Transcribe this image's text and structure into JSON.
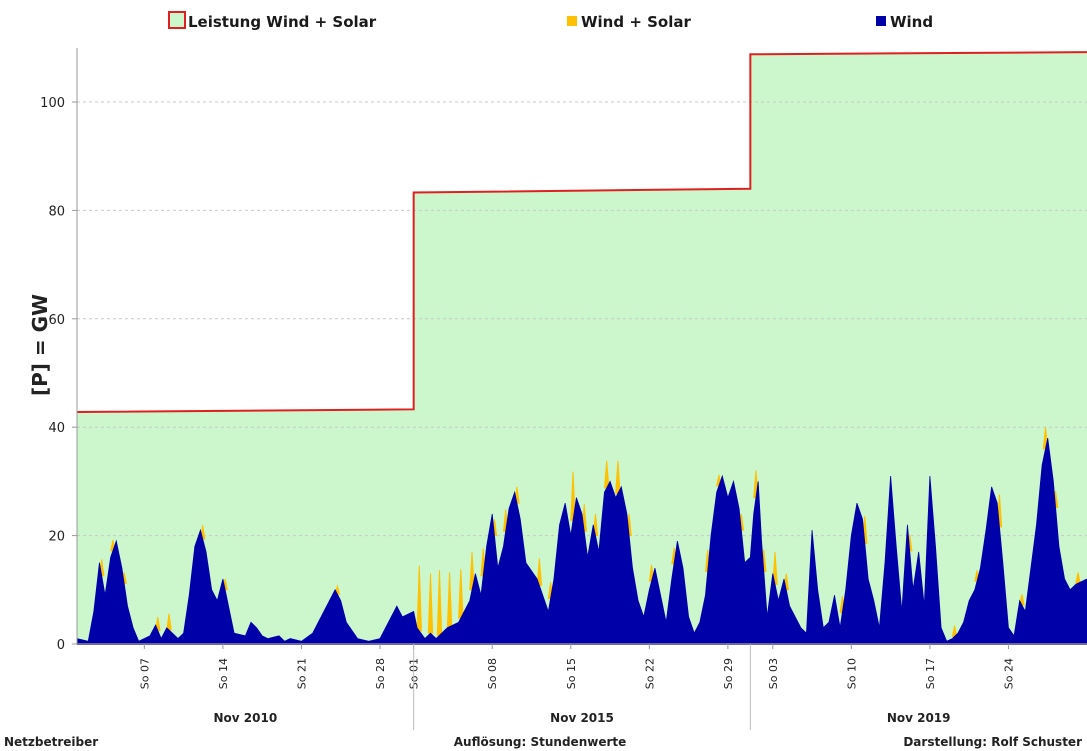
{
  "chart_data": {
    "type": "area",
    "ylabel": "[P]  =  GW",
    "ylim": [
      0,
      110
    ],
    "yticks": [
      0,
      20,
      40,
      60,
      80,
      100
    ],
    "grid": true,
    "legend_position": "top",
    "legend": [
      {
        "name": "Leistung Wind + Solar",
        "swatch": "outline",
        "fill": "#ccf7cc",
        "stroke": "#e02020"
      },
      {
        "name": "Wind + Solar",
        "swatch": "solid",
        "color": "#ffc000"
      },
      {
        "name": "Wind",
        "swatch": "solid",
        "color": "#0000a8"
      }
    ],
    "colors": {
      "capacity_fill": "#ccf7cc",
      "capacity_line": "#e02020",
      "wind_solar": "#ffc000",
      "wind": "#0000a8",
      "grid": "#c8c8c8"
    },
    "x_days_total": 90,
    "periods": [
      {
        "label": "Nov 2010",
        "start_day": 0,
        "end_day": 30
      },
      {
        "label": "Nov 2015",
        "start_day": 30,
        "end_day": 60
      },
      {
        "label": "Nov 2019",
        "start_day": 60,
        "end_day": 90
      }
    ],
    "xticks": [
      {
        "label": "So 07",
        "day": 6
      },
      {
        "label": "So 14",
        "day": 13
      },
      {
        "label": "So 21",
        "day": 20
      },
      {
        "label": "So 28",
        "day": 27
      },
      {
        "label": "So 01",
        "day": 30
      },
      {
        "label": "So 08",
        "day": 37
      },
      {
        "label": "So 15",
        "day": 44
      },
      {
        "label": "So 22",
        "day": 51
      },
      {
        "label": "So 29",
        "day": 58
      },
      {
        "label": "So 03",
        "day": 62
      },
      {
        "label": "So 10",
        "day": 69
      },
      {
        "label": "So 17",
        "day": 76
      },
      {
        "label": "So 24",
        "day": 83
      }
    ],
    "capacity": [
      {
        "day": 0,
        "value": 42.8
      },
      {
        "day": 30,
        "value": 43.3
      },
      {
        "day": 30,
        "value": 83.3
      },
      {
        "day": 60,
        "value": 84.0
      },
      {
        "day": 60,
        "value": 108.8
      },
      {
        "day": 90,
        "value": 109.2
      }
    ],
    "wind": [
      {
        "day": 0,
        "value": 1
      },
      {
        "day": 1,
        "value": 0.5
      },
      {
        "day": 1.5,
        "value": 6
      },
      {
        "day": 2,
        "value": 15
      },
      {
        "day": 2.5,
        "value": 9
      },
      {
        "day": 3,
        "value": 16
      },
      {
        "day": 3.5,
        "value": 19
      },
      {
        "day": 4,
        "value": 14
      },
      {
        "day": 4.5,
        "value": 7
      },
      {
        "day": 5,
        "value": 3
      },
      {
        "day": 5.5,
        "value": 0.5
      },
      {
        "day": 6.5,
        "value": 1.5
      },
      {
        "day": 7,
        "value": 3.5
      },
      {
        "day": 7.5,
        "value": 1
      },
      {
        "day": 8,
        "value": 3
      },
      {
        "day": 8.5,
        "value": 2
      },
      {
        "day": 9,
        "value": 1
      },
      {
        "day": 9.5,
        "value": 2
      },
      {
        "day": 10,
        "value": 9
      },
      {
        "day": 10.5,
        "value": 18
      },
      {
        "day": 11,
        "value": 21
      },
      {
        "day": 11.5,
        "value": 17
      },
      {
        "day": 12,
        "value": 10
      },
      {
        "day": 12.5,
        "value": 8
      },
      {
        "day": 13,
        "value": 12
      },
      {
        "day": 13.5,
        "value": 7
      },
      {
        "day": 14,
        "value": 2
      },
      {
        "day": 15,
        "value": 1.5
      },
      {
        "day": 15.5,
        "value": 4
      },
      {
        "day": 16,
        "value": 3
      },
      {
        "day": 16.5,
        "value": 1.5
      },
      {
        "day": 17,
        "value": 1
      },
      {
        "day": 18,
        "value": 1.5
      },
      {
        "day": 18.5,
        "value": 0.5
      },
      {
        "day": 19,
        "value": 1
      },
      {
        "day": 20,
        "value": 0.5
      },
      {
        "day": 21,
        "value": 2
      },
      {
        "day": 22,
        "value": 6
      },
      {
        "day": 23,
        "value": 10
      },
      {
        "day": 23.5,
        "value": 8
      },
      {
        "day": 24,
        "value": 4
      },
      {
        "day": 25,
        "value": 1
      },
      {
        "day": 26,
        "value": 0.5
      },
      {
        "day": 27,
        "value": 1
      },
      {
        "day": 28,
        "value": 5
      },
      {
        "day": 28.5,
        "value": 7
      },
      {
        "day": 29,
        "value": 5
      },
      {
        "day": 30,
        "value": 6
      },
      {
        "day": 30.3,
        "value": 3
      },
      {
        "day": 31,
        "value": 1
      },
      {
        "day": 31.5,
        "value": 2
      },
      {
        "day": 32,
        "value": 1
      },
      {
        "day": 33,
        "value": 3
      },
      {
        "day": 34,
        "value": 4
      },
      {
        "day": 35,
        "value": 8
      },
      {
        "day": 35.5,
        "value": 13
      },
      {
        "day": 36,
        "value": 9
      },
      {
        "day": 36.5,
        "value": 18
      },
      {
        "day": 37,
        "value": 24
      },
      {
        "day": 37.5,
        "value": 14
      },
      {
        "day": 38,
        "value": 18
      },
      {
        "day": 38.5,
        "value": 25
      },
      {
        "day": 39,
        "value": 28
      },
      {
        "day": 39.5,
        "value": 23
      },
      {
        "day": 40,
        "value": 15
      },
      {
        "day": 41,
        "value": 12
      },
      {
        "day": 42,
        "value": 6
      },
      {
        "day": 42.5,
        "value": 12
      },
      {
        "day": 43,
        "value": 22
      },
      {
        "day": 43.5,
        "value": 26
      },
      {
        "day": 44,
        "value": 20
      },
      {
        "day": 44.5,
        "value": 27
      },
      {
        "day": 45,
        "value": 24
      },
      {
        "day": 45.5,
        "value": 16
      },
      {
        "day": 46,
        "value": 22
      },
      {
        "day": 46.5,
        "value": 17
      },
      {
        "day": 47,
        "value": 28
      },
      {
        "day": 47.5,
        "value": 30
      },
      {
        "day": 48,
        "value": 27
      },
      {
        "day": 48.5,
        "value": 29
      },
      {
        "day": 49,
        "value": 24
      },
      {
        "day": 49.5,
        "value": 14
      },
      {
        "day": 50,
        "value": 8
      },
      {
        "day": 50.5,
        "value": 5
      },
      {
        "day": 51,
        "value": 10
      },
      {
        "day": 51.5,
        "value": 14
      },
      {
        "day": 52,
        "value": 9
      },
      {
        "day": 52.5,
        "value": 4
      },
      {
        "day": 53,
        "value": 12
      },
      {
        "day": 53.5,
        "value": 19
      },
      {
        "day": 54,
        "value": 14
      },
      {
        "day": 54.5,
        "value": 5
      },
      {
        "day": 55,
        "value": 2
      },
      {
        "day": 55.5,
        "value": 4
      },
      {
        "day": 56,
        "value": 9
      },
      {
        "day": 56.5,
        "value": 20
      },
      {
        "day": 57,
        "value": 28
      },
      {
        "day": 57.5,
        "value": 31
      },
      {
        "day": 58,
        "value": 27
      },
      {
        "day": 58.5,
        "value": 30
      },
      {
        "day": 59,
        "value": 25
      },
      {
        "day": 59.5,
        "value": 15
      },
      {
        "day": 60,
        "value": 16
      },
      {
        "day": 60.3,
        "value": 24
      },
      {
        "day": 60.7,
        "value": 30
      },
      {
        "day": 61,
        "value": 19
      },
      {
        "day": 61.5,
        "value": 5
      },
      {
        "day": 62,
        "value": 13
      },
      {
        "day": 62.5,
        "value": 8
      },
      {
        "day": 63,
        "value": 12
      },
      {
        "day": 63.5,
        "value": 7
      },
      {
        "day": 64,
        "value": 5
      },
      {
        "day": 64.5,
        "value": 3
      },
      {
        "day": 65,
        "value": 2
      },
      {
        "day": 65.5,
        "value": 21
      },
      {
        "day": 66,
        "value": 10
      },
      {
        "day": 66.5,
        "value": 3
      },
      {
        "day": 67,
        "value": 4
      },
      {
        "day": 67.5,
        "value": 9
      },
      {
        "day": 68,
        "value": 3
      },
      {
        "day": 68.5,
        "value": 10
      },
      {
        "day": 69,
        "value": 20
      },
      {
        "day": 69.5,
        "value": 26
      },
      {
        "day": 70,
        "value": 23
      },
      {
        "day": 70.5,
        "value": 12
      },
      {
        "day": 71,
        "value": 8
      },
      {
        "day": 71.5,
        "value": 3
      },
      {
        "day": 72,
        "value": 15
      },
      {
        "day": 72.5,
        "value": 31
      },
      {
        "day": 73,
        "value": 18
      },
      {
        "day": 73.5,
        "value": 6
      },
      {
        "day": 74,
        "value": 22
      },
      {
        "day": 74.5,
        "value": 10
      },
      {
        "day": 75,
        "value": 17
      },
      {
        "day": 75.5,
        "value": 7
      },
      {
        "day": 76,
        "value": 31
      },
      {
        "day": 76.5,
        "value": 18
      },
      {
        "day": 77,
        "value": 3
      },
      {
        "day": 77.5,
        "value": 0.5
      },
      {
        "day": 78,
        "value": 1
      },
      {
        "day": 78.5,
        "value": 2
      },
      {
        "day": 79,
        "value": 4
      },
      {
        "day": 79.5,
        "value": 8
      },
      {
        "day": 80,
        "value": 10
      },
      {
        "day": 80.5,
        "value": 14
      },
      {
        "day": 81,
        "value": 21
      },
      {
        "day": 81.5,
        "value": 29
      },
      {
        "day": 82,
        "value": 26
      },
      {
        "day": 82.5,
        "value": 15
      },
      {
        "day": 83,
        "value": 3
      },
      {
        "day": 83.5,
        "value": 1.5
      },
      {
        "day": 84,
        "value": 8
      },
      {
        "day": 84.5,
        "value": 6
      },
      {
        "day": 85,
        "value": 14
      },
      {
        "day": 85.5,
        "value": 22
      },
      {
        "day": 86,
        "value": 33
      },
      {
        "day": 86.5,
        "value": 38
      },
      {
        "day": 87,
        "value": 30
      },
      {
        "day": 87.5,
        "value": 18
      },
      {
        "day": 88,
        "value": 12
      },
      {
        "day": 88.5,
        "value": 10
      },
      {
        "day": 89,
        "value": 11
      },
      {
        "day": 90,
        "value": 12
      }
    ],
    "solar_spikes": [
      {
        "day": 2.2,
        "value": 3
      },
      {
        "day": 3.2,
        "value": 2
      },
      {
        "day": 4.2,
        "value": 2
      },
      {
        "day": 7.2,
        "value": 2.5
      },
      {
        "day": 8.2,
        "value": 3
      },
      {
        "day": 11.2,
        "value": 2.5
      },
      {
        "day": 13.2,
        "value": 2
      },
      {
        "day": 23.2,
        "value": 1.5
      },
      {
        "day": 30.5,
        "value": 12
      },
      {
        "day": 31.5,
        "value": 11
      },
      {
        "day": 32.3,
        "value": 12
      },
      {
        "day": 33.2,
        "value": 10
      },
      {
        "day": 34.2,
        "value": 9
      },
      {
        "day": 35.2,
        "value": 7
      },
      {
        "day": 36.2,
        "value": 5
      },
      {
        "day": 37.2,
        "value": 3
      },
      {
        "day": 38.2,
        "value": 4
      },
      {
        "day": 39.2,
        "value": 3
      },
      {
        "day": 41.2,
        "value": 5
      },
      {
        "day": 42.2,
        "value": 3
      },
      {
        "day": 44.2,
        "value": 9
      },
      {
        "day": 45.2,
        "value": 5
      },
      {
        "day": 46.2,
        "value": 4
      },
      {
        "day": 47.2,
        "value": 5
      },
      {
        "day": 48.2,
        "value": 6
      },
      {
        "day": 49.2,
        "value": 4
      },
      {
        "day": 51.2,
        "value": 3
      },
      {
        "day": 53.2,
        "value": 3
      },
      {
        "day": 56.2,
        "value": 4
      },
      {
        "day": 57.2,
        "value": 2
      },
      {
        "day": 59.2,
        "value": 3
      },
      {
        "day": 60.5,
        "value": 5
      },
      {
        "day": 61.2,
        "value": 4
      },
      {
        "day": 62.2,
        "value": 6
      },
      {
        "day": 63.2,
        "value": 3
      },
      {
        "day": 68.2,
        "value": 3
      },
      {
        "day": 70.2,
        "value": 5
      },
      {
        "day": 74.2,
        "value": 3
      },
      {
        "day": 78.2,
        "value": 2
      },
      {
        "day": 80.2,
        "value": 2
      },
      {
        "day": 82.2,
        "value": 6
      },
      {
        "day": 84.2,
        "value": 2
      },
      {
        "day": 86.3,
        "value": 4
      },
      {
        "day": 87.2,
        "value": 3
      },
      {
        "day": 89.2,
        "value": 2
      }
    ]
  },
  "footer": {
    "left": "Netzbetreiber",
    "center": "Auflösung: Stundenwerte",
    "right": "Darstellung: Rolf Schuster"
  }
}
